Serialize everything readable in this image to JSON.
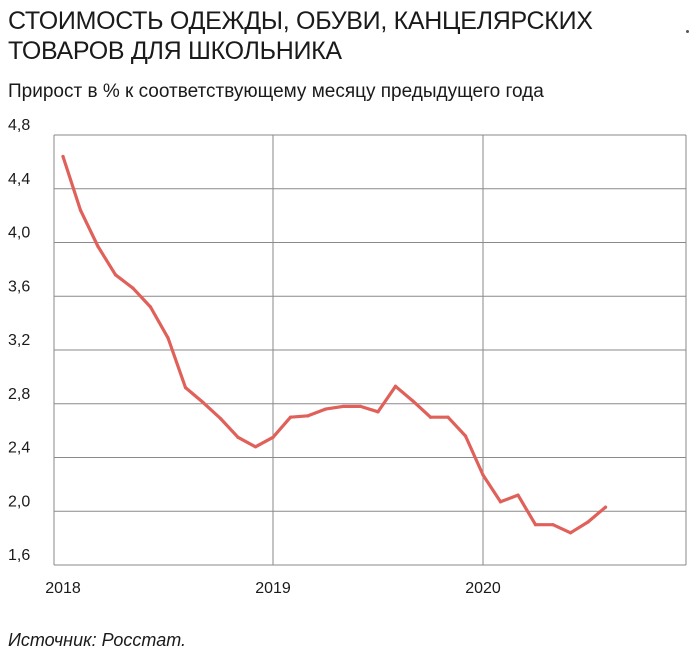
{
  "title": "Стоимость одежды, обуви, канцелярских товаров для школьника",
  "subtitle": "Прирост в % к соответствующему месяцу предыдущего года",
  "source": "Источник: Росстат.",
  "chart_data": {
    "type": "line",
    "title": "Стоимость одежды, обуви, канцелярских товаров для школьника",
    "subtitle": "Прирост в % к соответствующему месяцу предыдущего года",
    "xlabel": "",
    "ylabel": "",
    "ylim": [
      1.6,
      4.8
    ],
    "yticks": [
      "1,6",
      "2,0",
      "2,4",
      "2,8",
      "3,2",
      "3,6",
      "4,0",
      "4,4",
      "4,8"
    ],
    "ytick_values": [
      1.6,
      2.0,
      2.4,
      2.8,
      3.2,
      3.6,
      4.0,
      4.4,
      4.8
    ],
    "xticks": [
      "2018",
      "2019",
      "2020"
    ],
    "grid": true,
    "line_color": "#e0605a",
    "series": [
      {
        "x": [
          "2018-01",
          "2018-02",
          "2018-03",
          "2018-04",
          "2018-05",
          "2018-06",
          "2018-07",
          "2018-08",
          "2018-09",
          "2018-10",
          "2018-11",
          "2018-12",
          "2019-01",
          "2019-02",
          "2019-03",
          "2019-04",
          "2019-05",
          "2019-06",
          "2019-07",
          "2019-08",
          "2019-09",
          "2019-10",
          "2019-11",
          "2019-12",
          "2020-01",
          "2020-02",
          "2020-03",
          "2020-04",
          "2020-05",
          "2020-06",
          "2020-07",
          "2020-08"
        ],
        "values": [
          4.64,
          4.24,
          3.97,
          3.76,
          3.66,
          3.52,
          3.29,
          2.92,
          2.81,
          2.69,
          2.55,
          2.48,
          2.55,
          2.7,
          2.71,
          2.76,
          2.78,
          2.78,
          2.74,
          2.93,
          2.82,
          2.7,
          2.7,
          2.56,
          2.27,
          2.07,
          2.12,
          1.9,
          1.9,
          1.84,
          1.92,
          2.03
        ]
      }
    ]
  }
}
